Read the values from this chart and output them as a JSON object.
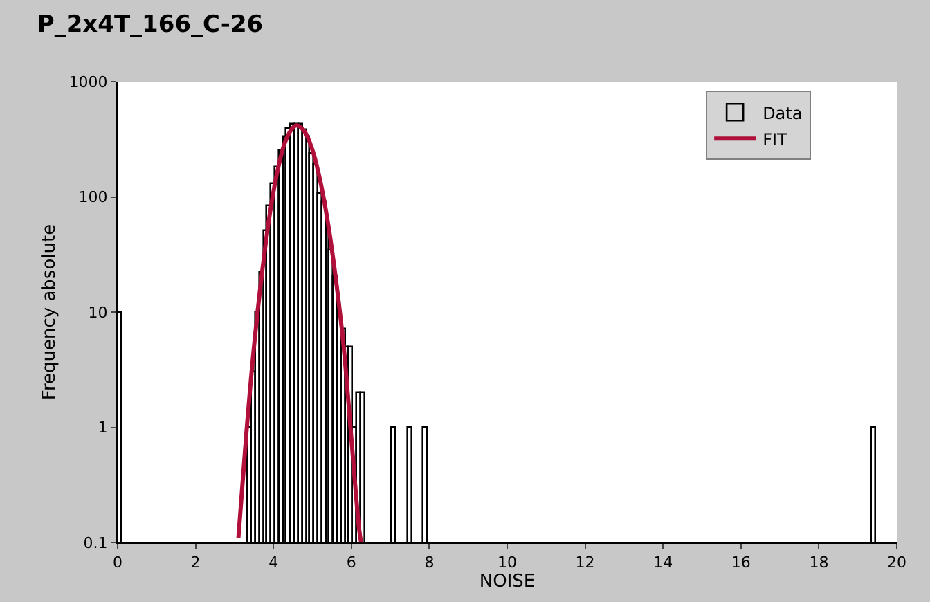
{
  "chart_data": {
    "type": "histogram",
    "title": "P_2x4T_166_C-26",
    "xlabel": "NOISE",
    "ylabel": "Frequency absolute",
    "log": "y",
    "legend": "top right",
    "xlim": [
      0,
      20
    ],
    "xticks": [
      0,
      2,
      4,
      6,
      8,
      10,
      12,
      14,
      16,
      18,
      20
    ],
    "ylim": [
      0.1,
      1000
    ],
    "yticks": [
      0.1,
      1,
      10,
      100,
      1000
    ],
    "series": [
      {
        "name": "Data",
        "color": "#000000",
        "bins": [
          0,
          0.1,
          3.35,
          3.45,
          3.55,
          3.65,
          3.75,
          3.85,
          3.95,
          4.05,
          4.15,
          4.25,
          4.35,
          4.45,
          4.55,
          4.65,
          4.75,
          4.85,
          4.95,
          5.05,
          5.15,
          5.25,
          5.35,
          5.45,
          5.55,
          5.65,
          5.75,
          5.85,
          5.95,
          6.05,
          6.15,
          6.25,
          6.35,
          7.05,
          7.15,
          7.45,
          7.55,
          7.85,
          7.95,
          19.35,
          19.45
        ],
        "values": [
          10,
          null,
          1,
          3,
          10,
          22,
          50,
          82,
          130,
          180,
          250,
          330,
          390,
          420,
          430,
          420,
          380,
          330,
          240,
          190,
          105,
          90,
          68,
          34,
          20,
          9,
          7,
          5,
          5,
          1,
          2,
          2,
          null,
          1,
          null,
          1,
          null,
          1,
          null,
          1
        ]
      },
      {
        "name": "FIT",
        "type": "line",
        "color": "#b0103a",
        "line_style": "solid",
        "marker": "none",
        "x": [
          3.1,
          3.3,
          3.5,
          3.7,
          3.9,
          4.1,
          4.3,
          4.5,
          4.6,
          4.8,
          5.0,
          5.2,
          5.4,
          5.6,
          5.8,
          6.0,
          6.2,
          6.25
        ],
        "values": [
          0.11,
          0.85,
          5.0,
          21,
          69,
          166,
          300,
          400,
          417,
          369,
          255,
          138,
          59,
          19.5,
          5.1,
          0.8,
          0.13,
          0.1
        ]
      }
    ]
  }
}
